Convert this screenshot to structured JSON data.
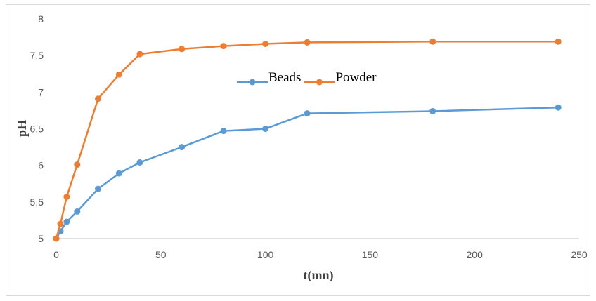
{
  "chart_data": {
    "type": "line",
    "title": "",
    "xlabel": "t(mn)",
    "ylabel": "pH",
    "xlim": [
      0,
      250
    ],
    "ylim": [
      5,
      8
    ],
    "x_ticks": [
      "0",
      "50",
      "100",
      "150",
      "200",
      "250"
    ],
    "y_ticks": [
      "5",
      "5,5",
      "6",
      "6,5",
      "7",
      "7,5",
      "8"
    ],
    "grid": false,
    "legend_position": "inside-center",
    "series": [
      {
        "name": "Beads",
        "color": "#5b9bd5",
        "points": [
          [
            0,
            5.0
          ],
          [
            2,
            5.1
          ],
          [
            5,
            5.23
          ],
          [
            10,
            5.37
          ],
          [
            20,
            5.68
          ],
          [
            30,
            5.89
          ],
          [
            40,
            6.04
          ],
          [
            60,
            6.25
          ],
          [
            80,
            6.47
          ],
          [
            100,
            6.5
          ],
          [
            120,
            6.71
          ],
          [
            180,
            6.74
          ],
          [
            240,
            6.79
          ]
        ]
      },
      {
        "name": "Powder",
        "color": "#ed7d31",
        "points": [
          [
            0,
            5.0
          ],
          [
            2,
            5.2
          ],
          [
            5,
            5.57
          ],
          [
            10,
            6.01
          ],
          [
            20,
            6.91
          ],
          [
            30,
            7.24
          ],
          [
            40,
            7.52
          ],
          [
            60,
            7.59
          ],
          [
            80,
            7.63
          ],
          [
            100,
            7.66
          ],
          [
            120,
            7.68
          ],
          [
            180,
            7.69
          ],
          [
            240,
            7.69
          ]
        ]
      }
    ]
  }
}
